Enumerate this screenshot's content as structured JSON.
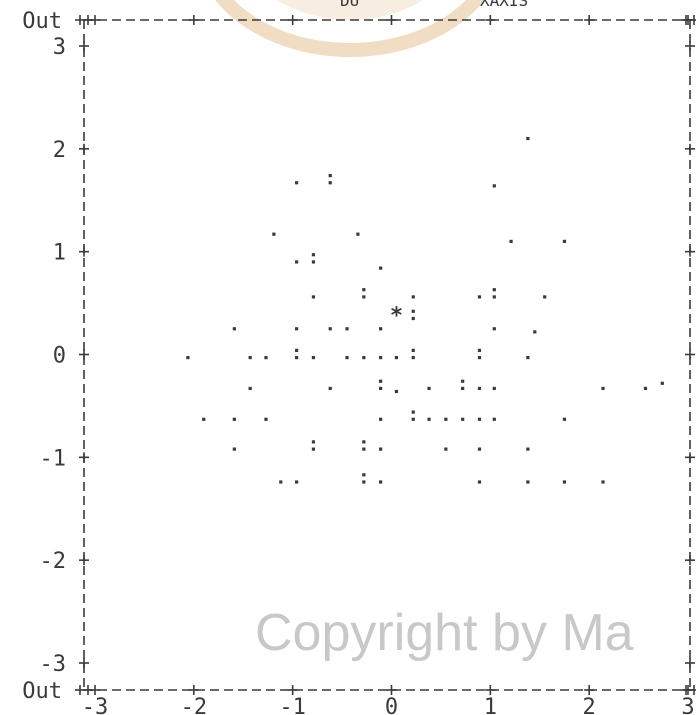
{
  "chart_data": {
    "type": "scatter",
    "title": "",
    "xlabel": "",
    "ylabel": "",
    "xlim": [
      -3,
      3
    ],
    "ylim": [
      -3,
      3
    ],
    "x_ticks": [
      {
        "value": -3,
        "label": "-3"
      },
      {
        "value": -2,
        "label": "-2"
      },
      {
        "value": -1,
        "label": "-1"
      },
      {
        "value": 0,
        "label": "0"
      },
      {
        "value": 1,
        "label": "1"
      },
      {
        "value": 2,
        "label": "2"
      },
      {
        "value": 3,
        "label": "3"
      }
    ],
    "y_ticks": [
      {
        "value": 3,
        "label": "3"
      },
      {
        "value": 2,
        "label": "2"
      },
      {
        "value": 1,
        "label": "1"
      },
      {
        "value": 0,
        "label": "0"
      },
      {
        "value": -1,
        "label": "-1"
      },
      {
        "value": -2,
        "label": "-2"
      },
      {
        "value": -3,
        "label": "-3"
      }
    ],
    "out_label": "Out",
    "centroid_symbol": "*",
    "centroid": {
      "x": 0.05,
      "y": 0.4
    },
    "header_fragments": [
      "DU",
      "XAXIS"
    ],
    "points": [
      {
        "x": 1.38,
        "y": 2.1
      },
      {
        "x": -0.96,
        "y": 1.67
      },
      {
        "x": -0.62,
        "y": 1.67
      },
      {
        "x": -0.62,
        "y": 1.74
      },
      {
        "x": 1.04,
        "y": 1.64
      },
      {
        "x": -1.19,
        "y": 1.17
      },
      {
        "x": -0.34,
        "y": 1.17
      },
      {
        "x": 1.21,
        "y": 1.1
      },
      {
        "x": 1.75,
        "y": 1.1
      },
      {
        "x": -0.96,
        "y": 0.9
      },
      {
        "x": -0.79,
        "y": 0.9
      },
      {
        "x": -0.79,
        "y": 0.97
      },
      {
        "x": -0.11,
        "y": 0.84
      },
      {
        "x": -0.79,
        "y": 0.56
      },
      {
        "x": -0.28,
        "y": 0.56
      },
      {
        "x": -0.28,
        "y": 0.63
      },
      {
        "x": 0.22,
        "y": 0.56
      },
      {
        "x": 0.89,
        "y": 0.56
      },
      {
        "x": 1.04,
        "y": 0.56
      },
      {
        "x": 1.04,
        "y": 0.63
      },
      {
        "x": 1.55,
        "y": 0.56
      },
      {
        "x": -1.59,
        "y": 0.25
      },
      {
        "x": -0.96,
        "y": 0.25
      },
      {
        "x": -0.62,
        "y": 0.25
      },
      {
        "x": -0.45,
        "y": 0.25
      },
      {
        "x": -0.11,
        "y": 0.25
      },
      {
        "x": 0.22,
        "y": 0.35
      },
      {
        "x": 0.22,
        "y": 0.42
      },
      {
        "x": 1.04,
        "y": 0.25
      },
      {
        "x": 1.45,
        "y": 0.22
      },
      {
        "x": -2.06,
        "y": -0.03
      },
      {
        "x": -1.43,
        "y": -0.03
      },
      {
        "x": -1.27,
        "y": -0.03
      },
      {
        "x": -0.96,
        "y": -0.03
      },
      {
        "x": -0.96,
        "y": 0.04
      },
      {
        "x": -0.79,
        "y": -0.03
      },
      {
        "x": -0.45,
        "y": -0.03
      },
      {
        "x": -0.28,
        "y": -0.03
      },
      {
        "x": -0.11,
        "y": -0.03
      },
      {
        "x": 0.05,
        "y": -0.03
      },
      {
        "x": 0.22,
        "y": -0.03
      },
      {
        "x": 0.22,
        "y": 0.04
      },
      {
        "x": 0.89,
        "y": -0.03
      },
      {
        "x": 0.89,
        "y": 0.04
      },
      {
        "x": 1.38,
        "y": -0.03
      },
      {
        "x": -1.43,
        "y": -0.33
      },
      {
        "x": -0.62,
        "y": -0.33
      },
      {
        "x": -0.11,
        "y": -0.33
      },
      {
        "x": -0.11,
        "y": -0.26
      },
      {
        "x": 0.05,
        "y": -0.36
      },
      {
        "x": 0.38,
        "y": -0.33
      },
      {
        "x": 0.72,
        "y": -0.33
      },
      {
        "x": 0.72,
        "y": -0.26
      },
      {
        "x": 0.89,
        "y": -0.33
      },
      {
        "x": 1.04,
        "y": -0.33
      },
      {
        "x": 2.14,
        "y": -0.33
      },
      {
        "x": 2.57,
        "y": -0.33
      },
      {
        "x": 2.74,
        "y": -0.28
      },
      {
        "x": -1.9,
        "y": -0.63
      },
      {
        "x": -1.59,
        "y": -0.63
      },
      {
        "x": -1.27,
        "y": -0.63
      },
      {
        "x": -0.11,
        "y": -0.63
      },
      {
        "x": 0.22,
        "y": -0.63
      },
      {
        "x": 0.22,
        "y": -0.56
      },
      {
        "x": 0.38,
        "y": -0.63
      },
      {
        "x": 0.55,
        "y": -0.63
      },
      {
        "x": 0.72,
        "y": -0.63
      },
      {
        "x": 0.89,
        "y": -0.63
      },
      {
        "x": 1.04,
        "y": -0.63
      },
      {
        "x": 1.75,
        "y": -0.63
      },
      {
        "x": -1.59,
        "y": -0.92
      },
      {
        "x": -0.79,
        "y": -0.92
      },
      {
        "x": -0.79,
        "y": -0.85
      },
      {
        "x": -0.28,
        "y": -0.92
      },
      {
        "x": -0.28,
        "y": -0.85
      },
      {
        "x": -0.11,
        "y": -0.92
      },
      {
        "x": 0.55,
        "y": -0.92
      },
      {
        "x": 0.89,
        "y": -0.92
      },
      {
        "x": 1.38,
        "y": -0.92
      },
      {
        "x": -1.12,
        "y": -1.24
      },
      {
        "x": -0.96,
        "y": -1.24
      },
      {
        "x": -0.28,
        "y": -1.24
      },
      {
        "x": -0.28,
        "y": -1.17
      },
      {
        "x": -0.11,
        "y": -1.24
      },
      {
        "x": 0.89,
        "y": -1.24
      },
      {
        "x": 1.38,
        "y": -1.24
      },
      {
        "x": 1.75,
        "y": -1.24
      },
      {
        "x": 2.14,
        "y": -1.24
      }
    ]
  },
  "watermark": {
    "text": "Copyright by Ma",
    "color": "#c8c8c8"
  },
  "colors": {
    "ink": "#3a3a3a",
    "seal": "#f1dcc4"
  }
}
